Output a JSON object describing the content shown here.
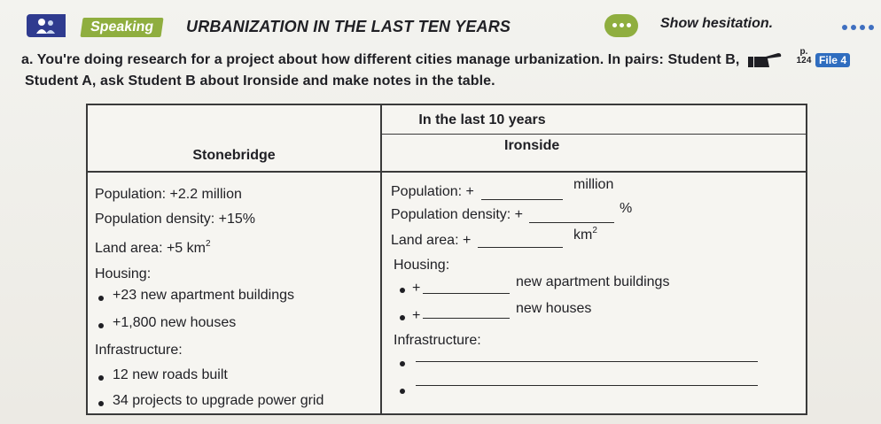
{
  "header": {
    "section_label": "Speaking",
    "title": "URBANIZATION IN THE LAST TEN YEARS",
    "tip": "Show hesitation."
  },
  "instruction": {
    "line1": "a. You're doing research for a project about how different cities manage urbanization. In pairs: Student B,",
    "page_ref": "p. 124",
    "file_label": "File 4",
    "line2": "Student A, ask Student B about Ironside and make notes in the table."
  },
  "table": {
    "caption": "In the last 10 years",
    "col_left": "Stonebridge",
    "col_right": "Ironside",
    "left": {
      "population": "Population: +2.2 million",
      "density": "Population density: +15%",
      "land_prefix": "Land area: +5 km",
      "land_sup": "2",
      "housing": "Housing:",
      "housing_items": [
        "+23 new apartment buildings",
        "+1,800 new houses"
      ],
      "infrastructure": "Infrastructure:",
      "infra_items": [
        "12 new roads built",
        "34 projects to upgrade power grid"
      ]
    },
    "right": {
      "population": "Population: +",
      "population_unit": "million",
      "density": "Population density: +",
      "density_unit": "%",
      "land": "Land area: +",
      "land_unit": "km",
      "land_sup": "2",
      "housing": "Housing:",
      "housing_items": [
        {
          "prefix": "+",
          "suffix": "new apartment buildings"
        },
        {
          "prefix": "+",
          "suffix": "new houses"
        }
      ],
      "infrastructure": "Infrastructure:"
    }
  }
}
